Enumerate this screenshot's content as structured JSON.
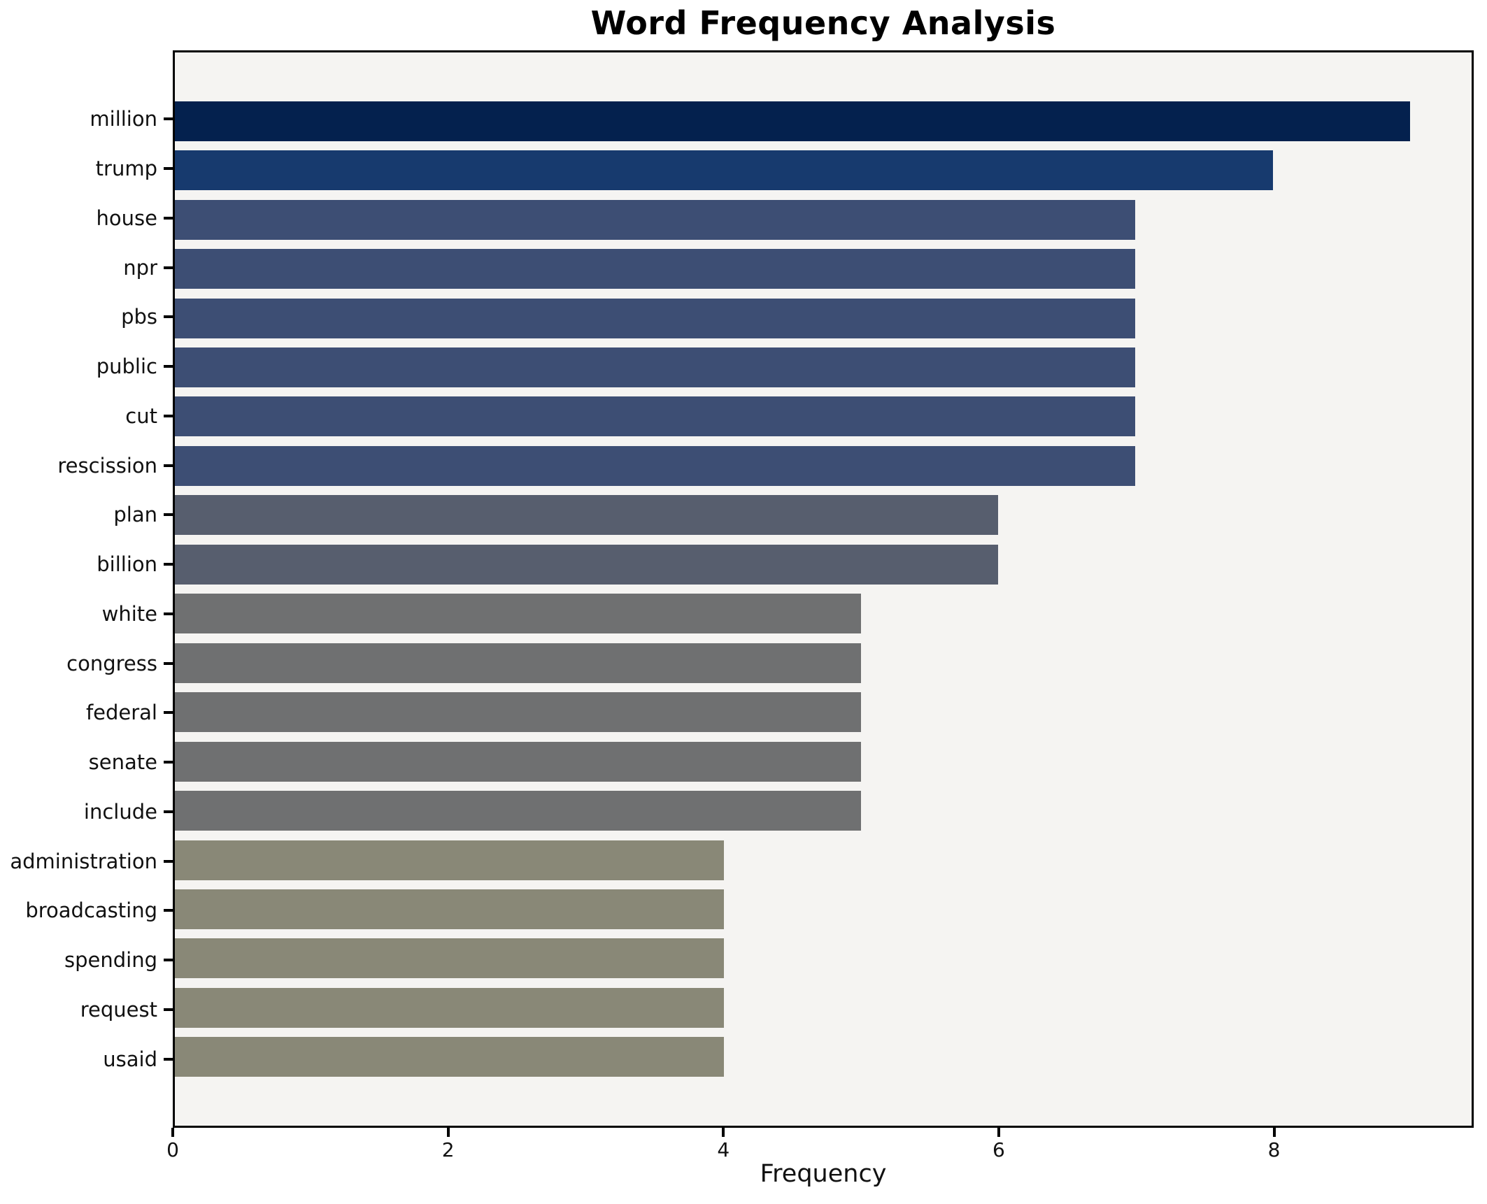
{
  "figure": {
    "background_color": "#ffffff",
    "plot_background_color": "#f5f4f2",
    "frame_color": "#000000"
  },
  "chart_data": {
    "type": "bar",
    "orientation": "horizontal",
    "title": "Word Frequency Analysis",
    "xlabel": "Frequency",
    "ylabel": "",
    "xlim": [
      0,
      9.45
    ],
    "grid": false,
    "legend": "none",
    "xticks": [
      {
        "value": 0,
        "label": "0"
      },
      {
        "value": 2,
        "label": "2"
      },
      {
        "value": 4,
        "label": "4"
      },
      {
        "value": 6,
        "label": "6"
      },
      {
        "value": 8,
        "label": "8"
      }
    ],
    "categories": [
      "million",
      "trump",
      "house",
      "npr",
      "pbs",
      "public",
      "cut",
      "rescission",
      "plan",
      "billion",
      "white",
      "congress",
      "federal",
      "senate",
      "include",
      "administration",
      "broadcasting",
      "spending",
      "request",
      "usaid"
    ],
    "values": [
      9,
      8,
      7,
      7,
      7,
      7,
      7,
      7,
      6,
      6,
      5,
      5,
      5,
      5,
      5,
      4,
      4,
      4,
      4,
      4
    ],
    "bar_colors": [
      "#04214e",
      "#173a6e",
      "#3d4e74",
      "#3d4e74",
      "#3d4e74",
      "#3d4e74",
      "#3d4e74",
      "#3d4e74",
      "#575e6e",
      "#575e6e",
      "#6f7071",
      "#6f7071",
      "#6f7071",
      "#6f7071",
      "#6f7071",
      "#898877",
      "#898877",
      "#898877",
      "#898877",
      "#898877"
    ]
  }
}
